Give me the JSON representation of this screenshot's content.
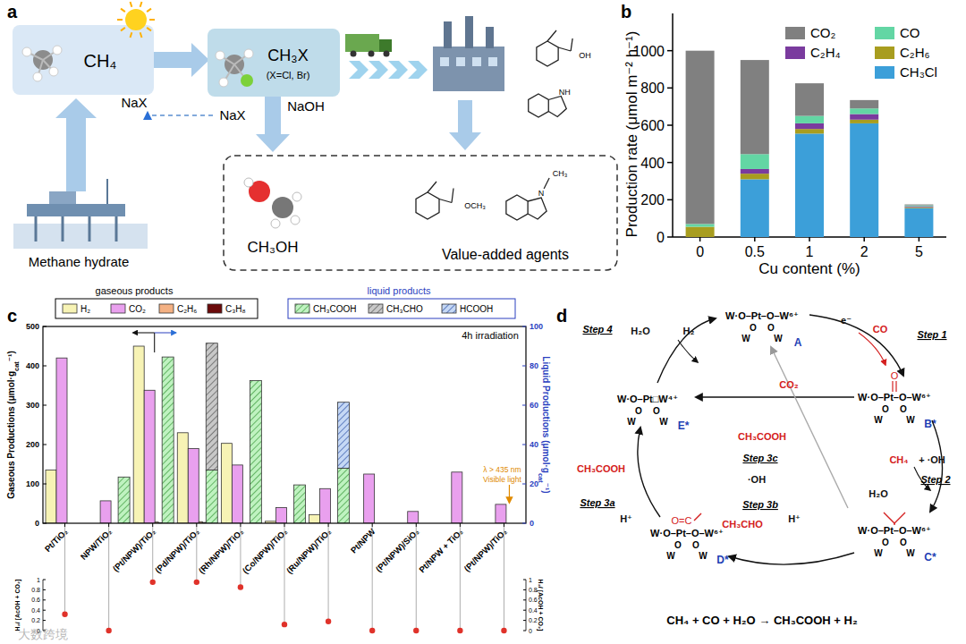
{
  "figure": {
    "panel_labels": [
      "a",
      "b",
      "c",
      "d"
    ],
    "watermark": "大数跨境"
  },
  "diagram_a": {
    "methane": "CH₄",
    "methyl_halide": "CH₃X",
    "halide_note": "(X=Cl, Br)",
    "halide_in": "NaX",
    "halide_recycled": "NaX",
    "base": "NaOH",
    "source": "Methane hydrate",
    "methanol": "CH₃OH",
    "agents": "Value-added agents",
    "acid_group": "OH",
    "indoline_group": "NH",
    "ester_group": "OCH₃",
    "amine_group": "N",
    "amine_methyl": "CH₃"
  },
  "diagram_d": {
    "species": [
      {
        "id": "A",
        "formula": "W·O–Pt–O–W⁶⁺",
        "below": [
          "O",
          "O",
          "W",
          "W"
        ]
      },
      {
        "id": "B*",
        "formula": "W·O–Pt–O–W⁶⁺",
        "below": [
          "O",
          "O",
          "W",
          "W"
        ],
        "ligand": "O"
      },
      {
        "id": "C*",
        "formula": "W·O–Pt–O–W⁶⁺",
        "below": [
          "O",
          "O",
          "W",
          "W"
        ]
      },
      {
        "id": "D*",
        "formula": "W·O–Pt–O–W⁶⁺",
        "below": [
          "O",
          "O",
          "W",
          "W"
        ],
        "ligand": "O=C"
      },
      {
        "id": "E*",
        "formula": "W·O–Pt□W⁴⁺",
        "below": [
          "O",
          "O",
          "W",
          "W"
        ]
      }
    ],
    "steps": [
      {
        "label": "Step 1",
        "texts": [
          "e⁻",
          "CO"
        ]
      },
      {
        "label": "Step 2",
        "texts": [
          "CH₄",
          "+ ·OH",
          "H₂O"
        ]
      },
      {
        "label": "Step 3a",
        "texts": [
          "CH₃COOH",
          "H⁺"
        ]
      },
      {
        "label": "Step 3b",
        "texts": [
          "CH₃CHO",
          "H⁺"
        ]
      },
      {
        "label": "Step 3c",
        "texts": [
          "CH₃COOH",
          "·OH"
        ]
      },
      {
        "label": "Step 4",
        "texts": [
          "H₂O",
          "H₂"
        ]
      }
    ],
    "side_product": "CO₂",
    "equation": "CH₄ + CO + H₂O → CH₃COOH + H₂"
  },
  "chart_data": [
    {
      "type": "bar",
      "stacked": true,
      "x_label": "Cu content (%)",
      "y_label": "Production rate (μmol m⁻² h⁻¹)",
      "categories": [
        "0",
        "0.5",
        "1",
        "2",
        "5"
      ],
      "series": [
        {
          "name": "CO₂",
          "color": "#808080",
          "values": [
            930,
            505,
            175,
            45,
            5
          ]
        },
        {
          "name": "CO",
          "color": "#63d6a4",
          "values": [
            15,
            80,
            40,
            30,
            5
          ]
        },
        {
          "name": "C₂H₄",
          "color": "#7a3b9e",
          "values": [
            0,
            25,
            30,
            30,
            5
          ]
        },
        {
          "name": "C₂H₆",
          "color": "#a89d1f",
          "values": [
            55,
            30,
            25,
            20,
            5
          ]
        },
        {
          "name": "CH₃Cl",
          "color": "#3c9fd9",
          "values": [
            0,
            310,
            555,
            610,
            155
          ]
        }
      ],
      "ylim": [
        0,
        1200
      ],
      "yticks": [
        0,
        200,
        400,
        600,
        800,
        1000
      ],
      "legend": "upper right"
    },
    {
      "type": "bar",
      "y_label": {
        "text": "Gaseous Productions (μmol·g",
        "sub": "cat",
        "tail": "⁻¹)"
      },
      "y2_label": {
        "text": "Liquid Productions (μmol·g",
        "sub": "cat",
        "tail": "⁻¹)"
      },
      "legend_groups": [
        "gaseous products",
        "liquid products"
      ],
      "annotations": [
        "4h irradiation",
        "λ > 435 nm",
        "Visible light"
      ],
      "categories": [
        "Pt/TiO₂",
        "NPW/TiO₂",
        "(Pt/NPW)/TiO₂",
        "(Pd/NPW)/TiO₂",
        "(Rh/NPW)/TiO₂",
        "(Co/NPW)/TiO₂",
        "(Ru/NPW)/TiO₂",
        "Pt/NPW",
        "(Pt/NPW)/SiO₂",
        "Pt/NPW + TiO₂",
        "(Pt/NPW)/TiO₂"
      ],
      "series": [
        {
          "name": "H₂",
          "color": "#f7f3b5",
          "values": [
            135,
            0,
            450,
            230,
            203,
            5,
            22,
            0,
            0,
            0,
            0
          ]
        },
        {
          "name": "CO₂",
          "color": "#e9a0ee",
          "values": [
            420,
            57,
            338,
            190,
            148,
            40,
            88,
            125,
            30,
            130,
            48
          ]
        },
        {
          "name": "C₂H₆",
          "color": "#f4b183",
          "values": [
            0,
            0,
            3,
            4,
            0,
            0,
            0,
            0,
            0,
            0,
            0
          ]
        },
        {
          "name": "C₃H₈",
          "color": "#6b0a0a",
          "values": [
            0,
            0,
            1,
            2,
            0,
            0,
            0,
            0,
            0,
            0,
            0
          ]
        },
        {
          "name": "CH₃COOH",
          "color": "#bff2c0",
          "axis": "y2",
          "stacked": true,
          "values": [
            0,
            23.5,
            84.5,
            27,
            72.5,
            19.5,
            28,
            0,
            0,
            0,
            0
          ]
        },
        {
          "name": "CH₃CHO",
          "color": "#c8c8c8",
          "axis": "y2",
          "stacked": true,
          "values": [
            0,
            0,
            0,
            64.5,
            0,
            0,
            0,
            0,
            0,
            0,
            0
          ]
        },
        {
          "name": "HCOOH",
          "color": "#c5d8f5",
          "axis": "y2",
          "stacked": true,
          "values": [
            0,
            0,
            0,
            0,
            0,
            0,
            33.5,
            0,
            0,
            0,
            0
          ]
        }
      ],
      "ylim": [
        0,
        500
      ],
      "yticks": [
        0,
        100,
        200,
        300,
        400,
        500
      ],
      "y2lim": [
        0,
        100
      ],
      "y2ticks": [
        0,
        20,
        40,
        60,
        80,
        100
      ]
    },
    {
      "type": "scatter",
      "y_label": "H₂/ [AcOH + CO₂]",
      "categories": [
        null,
        null,
        null,
        null,
        null,
        null,
        null,
        null,
        null,
        null,
        null
      ],
      "values": [
        0.32,
        0,
        0.95,
        0.95,
        0.85,
        0.12,
        0.18,
        0,
        0,
        0,
        0
      ],
      "color": "#e0322a",
      "marker": "circle",
      "ylim": [
        0,
        1
      ],
      "yticks": [
        0,
        0.2,
        0.4,
        0.6,
        0.8,
        1
      ]
    }
  ]
}
